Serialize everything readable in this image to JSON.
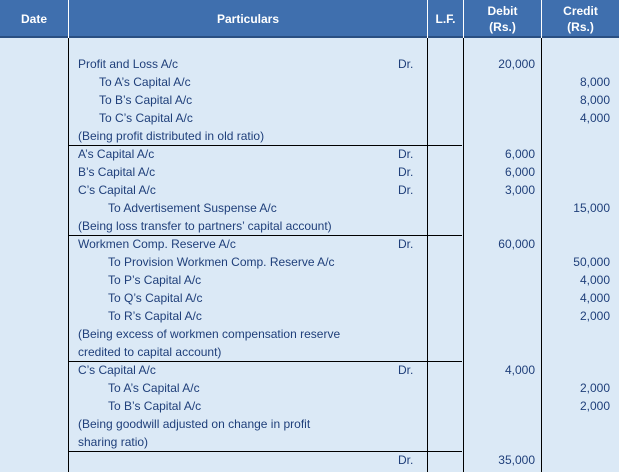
{
  "headers": {
    "date": "Date",
    "particulars": "Particulars",
    "lf": "L.F.",
    "debit": [
      "Debit",
      "(Rs.)"
    ],
    "credit": [
      "Credit",
      "(Rs.)"
    ]
  },
  "entries": [
    {
      "lines": [
        {
          "text": "Profit and Loss A/c",
          "indent": 0,
          "dr": "Dr.",
          "debit": "20,000"
        },
        {
          "text": "To A’s Capital A/c",
          "indent": 1,
          "credit": "8,000"
        },
        {
          "text": "To B’s Capital A/c",
          "indent": 1,
          "credit": "8,000"
        },
        {
          "text": "To C’s Capital A/c",
          "indent": 1,
          "credit": "4,000"
        },
        {
          "text": "(Being profit distributed in old ratio)",
          "indent": 0
        }
      ]
    },
    {
      "lines": [
        {
          "text": "A’s Capital A/c",
          "indent": 0,
          "dr": "Dr.",
          "debit": "6,000"
        },
        {
          "text": "B’s Capital A/c",
          "indent": 0,
          "dr": "Dr.",
          "debit": "6,000"
        },
        {
          "text": "C’s Capital A/c",
          "indent": 0,
          "dr": "Dr.",
          "debit": "3,000"
        },
        {
          "text": "To Advertisement Suspense A/c",
          "indent": 2,
          "credit": "15,000"
        },
        {
          "text": "(Being loss transfer to partners’ capital account)",
          "indent": 0
        }
      ]
    },
    {
      "lines": [
        {
          "text": "Workmen Comp. Reserve A/c",
          "indent": 0,
          "dr": "Dr.",
          "debit": "60,000"
        },
        {
          "text": "To Provision Workmen Comp. Reserve A/c",
          "indent": 2,
          "credit": "50,000"
        },
        {
          "text": "To P’s Capital A/c",
          "indent": 2,
          "credit": "4,000"
        },
        {
          "text": "To Q’s Capital A/c",
          "indent": 2,
          "credit": "4,000"
        },
        {
          "text": "To R’s Capital A/c",
          "indent": 2,
          "credit": "2,000"
        },
        {
          "text": "(Being excess of workmen compensation reserve",
          "indent": 0
        },
        {
          "text": "credited to capital account)",
          "indent": 0
        }
      ]
    },
    {
      "lines": [
        {
          "text": "C’s Capital A/c",
          "indent": 0,
          "dr": "Dr.",
          "debit": "4,000"
        },
        {
          "text": "To A’s Capital A/c",
          "indent": 2,
          "credit": "2,000"
        },
        {
          "text": "To B’s Capital A/c",
          "indent": 2,
          "credit": "2,000"
        },
        {
          "text": "(Being goodwill adjusted on change in profit",
          "indent": 0
        },
        {
          "text": "sharing ratio)",
          "indent": 0
        }
      ]
    },
    {
      "lines": [
        {
          "text": "",
          "indent": 0,
          "dr": "Dr.",
          "debit": "35,000"
        }
      ]
    }
  ],
  "colors": {
    "header_bg": "#3f6fae",
    "body_bg": "#dbe9f6",
    "text": "#1f3f7a",
    "lines": "#000000"
  }
}
